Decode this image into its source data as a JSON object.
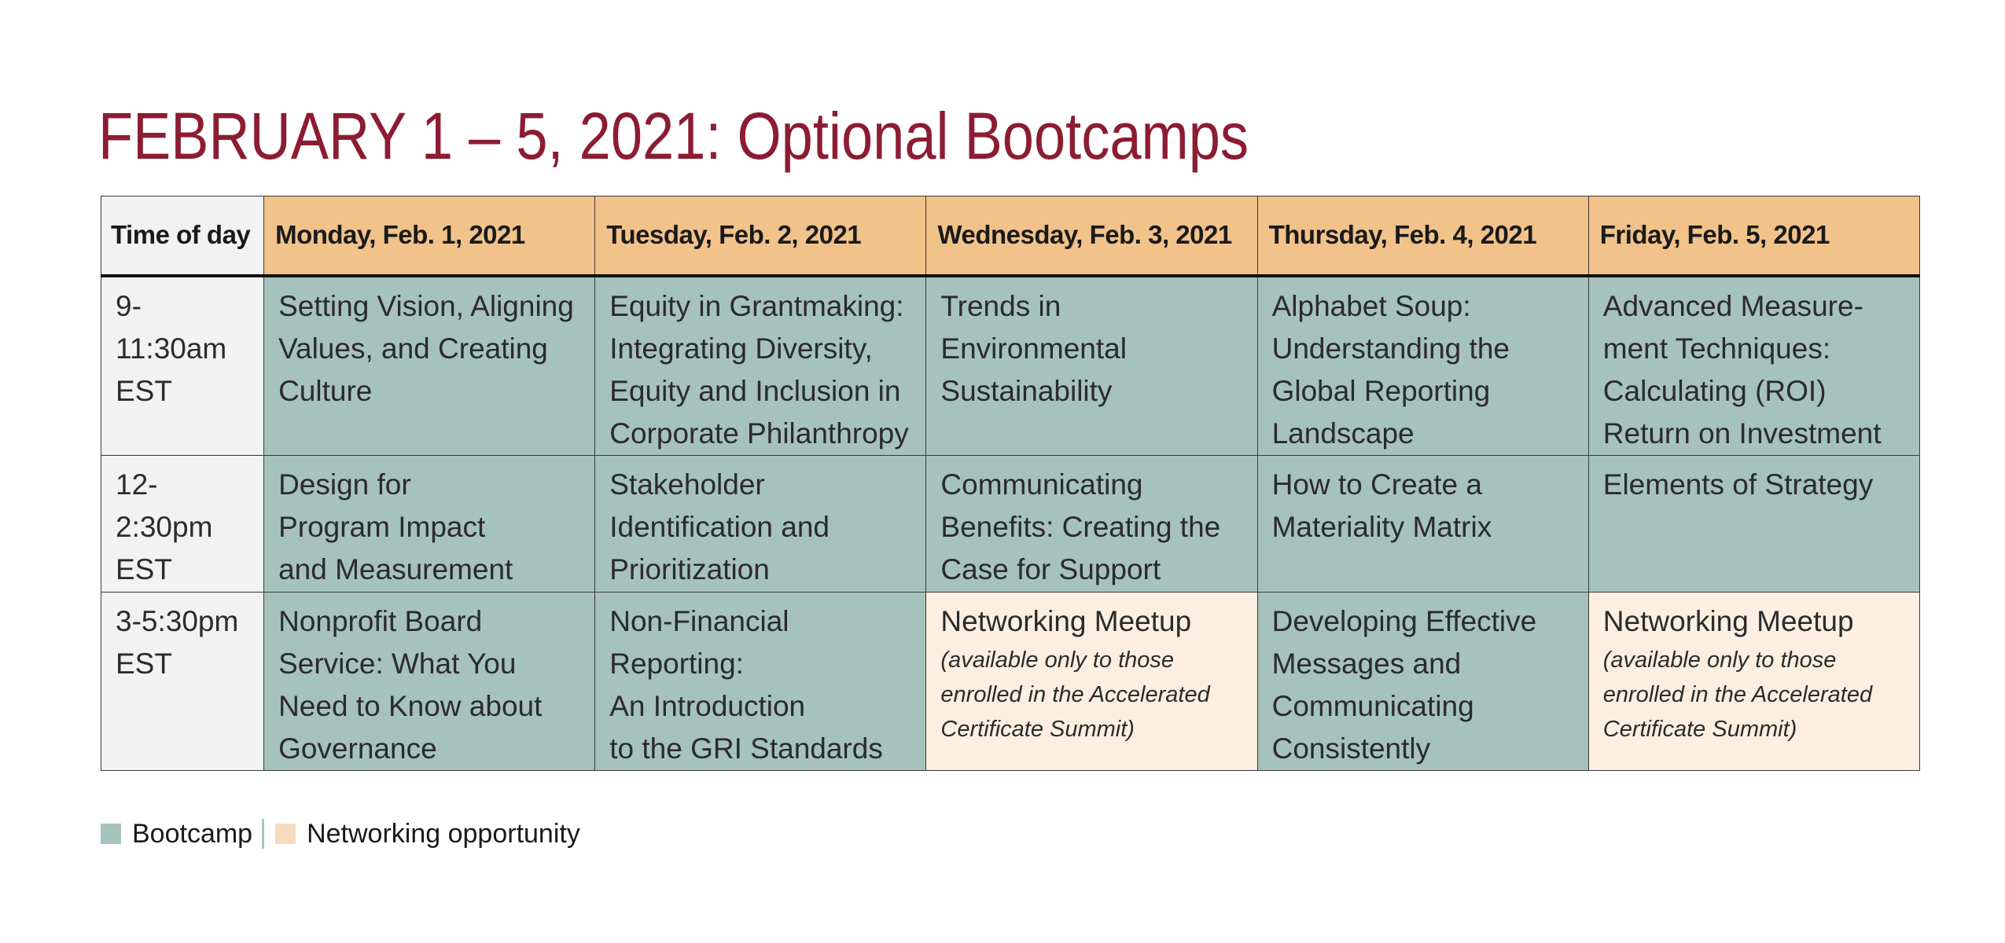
{
  "title": "FEBRUARY 1 – 5, 2021: Optional Bootcamps",
  "colors": {
    "title": "#8c1c32",
    "bootcamp": "#a6c2bc",
    "networking": "#fcefe1",
    "header": "#f1c28a",
    "time_column": "#f2f2f2"
  },
  "table": {
    "headers": [
      "Time of day",
      "Monday, Feb. 1, 2021",
      "Tuesday, Feb. 2, 2021",
      "Wednesday, Feb. 3, 2021",
      "Thursday, Feb. 4, 2021",
      "Friday, Feb. 5, 2021"
    ],
    "rows": [
      {
        "time": "9-11:30am\nEST",
        "cells": [
          {
            "type": "bootcamp",
            "title": "Setting Vision, Aligning\nValues, and Creating\nCulture"
          },
          {
            "type": "bootcamp",
            "title": "Equity in Grantmaking:\nIntegrating Diversity,\nEquity and Inclusion in\nCorporate Philanthropy"
          },
          {
            "type": "bootcamp",
            "title": "Trends in\nEnvironmental\nSustainability"
          },
          {
            "type": "bootcamp",
            "title": "Alphabet Soup:\nUnderstanding the\nGlobal Reporting\nLandscape"
          },
          {
            "type": "bootcamp",
            "title": "Advanced Measure-\nment Techniques:\nCalculating (ROI)\nReturn on Investment"
          }
        ]
      },
      {
        "time": "12-2:30pm\nEST",
        "cells": [
          {
            "type": "bootcamp",
            "title": "Design for\nProgram Impact\nand Measurement"
          },
          {
            "type": "bootcamp",
            "title": "Stakeholder\nIdentification and\nPrioritization"
          },
          {
            "type": "bootcamp",
            "title": "Communicating\nBenefits: Creating the\nCase for Support"
          },
          {
            "type": "bootcamp",
            "title": "How to Create a\nMateriality Matrix"
          },
          {
            "type": "bootcamp",
            "title": "Elements of Strategy"
          }
        ]
      },
      {
        "time": "3-5:30pm\nEST",
        "cells": [
          {
            "type": "bootcamp",
            "title": "Nonprofit Board\nService: What You\nNeed to Know about\nGovernance"
          },
          {
            "type": "bootcamp",
            "title": "Non-Financial\nReporting:\nAn Introduction\nto the GRI Standards"
          },
          {
            "type": "networking",
            "title": "Networking Meetup",
            "note": "(available only to those\nenrolled in the Accelerated\nCertificate Summit)"
          },
          {
            "type": "bootcamp",
            "title": "Developing Effective\nMessages and\nCommunicating\nConsistently"
          },
          {
            "type": "networking",
            "title": "Networking Meetup",
            "note": "(available only to those\nenrolled in the Accelerated\nCertificate Summit)"
          }
        ]
      }
    ]
  },
  "legend": {
    "bootcamp_label": "Bootcamp",
    "networking_label": "Networking opportunity"
  }
}
